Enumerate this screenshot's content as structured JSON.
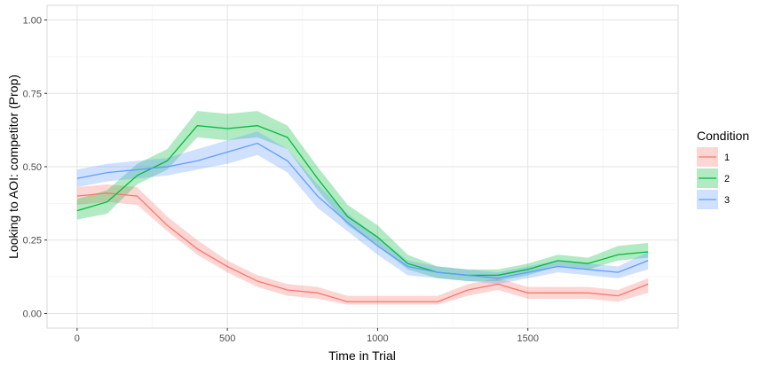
{
  "chart_data": {
    "type": "line",
    "xlabel": "Time in Trial",
    "ylabel": "Looking to AOI:  competitor (Prop)",
    "xlim": [
      -100,
      2000
    ],
    "ylim": [
      -0.05,
      1.05
    ],
    "x_ticks": [
      0,
      500,
      1000,
      1500
    ],
    "y_ticks": [
      0.0,
      0.25,
      0.5,
      0.75,
      1.0
    ],
    "x_tick_labels": [
      "0",
      "500",
      "1000",
      "1500"
    ],
    "y_tick_labels": [
      "0.00",
      "0.25",
      "0.50",
      "0.75",
      "1.00"
    ],
    "grid": true,
    "legend": {
      "title": "Condition",
      "position": "right"
    },
    "x": [
      0,
      100,
      200,
      300,
      400,
      500,
      600,
      700,
      800,
      900,
      1000,
      1100,
      1200,
      1300,
      1400,
      1500,
      1600,
      1700,
      1800,
      1900
    ],
    "series": [
      {
        "name": "1",
        "color": "#F8766D",
        "values": [
          0.4,
          0.41,
          0.4,
          0.3,
          0.22,
          0.16,
          0.11,
          0.08,
          0.07,
          0.04,
          0.04,
          0.04,
          0.04,
          0.08,
          0.1,
          0.07,
          0.07,
          0.07,
          0.06,
          0.1
        ],
        "lower": [
          0.37,
          0.38,
          0.37,
          0.28,
          0.2,
          0.14,
          0.09,
          0.06,
          0.05,
          0.03,
          0.03,
          0.03,
          0.03,
          0.06,
          0.08,
          0.05,
          0.05,
          0.05,
          0.04,
          0.07
        ],
        "upper": [
          0.43,
          0.44,
          0.43,
          0.33,
          0.25,
          0.18,
          0.13,
          0.1,
          0.09,
          0.06,
          0.06,
          0.06,
          0.06,
          0.1,
          0.12,
          0.09,
          0.09,
          0.09,
          0.08,
          0.12
        ]
      },
      {
        "name": "2",
        "color": "#00BA38",
        "values": [
          0.35,
          0.38,
          0.47,
          0.52,
          0.64,
          0.63,
          0.64,
          0.6,
          0.46,
          0.33,
          0.26,
          0.17,
          0.14,
          0.13,
          0.13,
          0.15,
          0.18,
          0.17,
          0.2,
          0.21
        ],
        "lower": [
          0.32,
          0.34,
          0.44,
          0.49,
          0.6,
          0.59,
          0.6,
          0.56,
          0.42,
          0.3,
          0.23,
          0.15,
          0.12,
          0.11,
          0.11,
          0.13,
          0.16,
          0.15,
          0.18,
          0.19
        ],
        "upper": [
          0.39,
          0.42,
          0.51,
          0.56,
          0.69,
          0.68,
          0.69,
          0.64,
          0.5,
          0.37,
          0.3,
          0.2,
          0.16,
          0.15,
          0.15,
          0.17,
          0.2,
          0.19,
          0.23,
          0.24
        ]
      },
      {
        "name": "3",
        "color": "#619CFF",
        "values": [
          0.46,
          0.48,
          0.49,
          0.5,
          0.52,
          0.55,
          0.58,
          0.52,
          0.4,
          0.31,
          0.23,
          0.16,
          0.14,
          0.13,
          0.12,
          0.14,
          0.16,
          0.15,
          0.14,
          0.18
        ],
        "lower": [
          0.43,
          0.45,
          0.46,
          0.47,
          0.49,
          0.51,
          0.54,
          0.48,
          0.36,
          0.28,
          0.2,
          0.13,
          0.12,
          0.11,
          0.1,
          0.12,
          0.14,
          0.13,
          0.12,
          0.15
        ],
        "upper": [
          0.49,
          0.51,
          0.52,
          0.53,
          0.56,
          0.59,
          0.62,
          0.56,
          0.44,
          0.34,
          0.26,
          0.18,
          0.16,
          0.15,
          0.14,
          0.16,
          0.18,
          0.17,
          0.16,
          0.21
        ]
      }
    ]
  }
}
